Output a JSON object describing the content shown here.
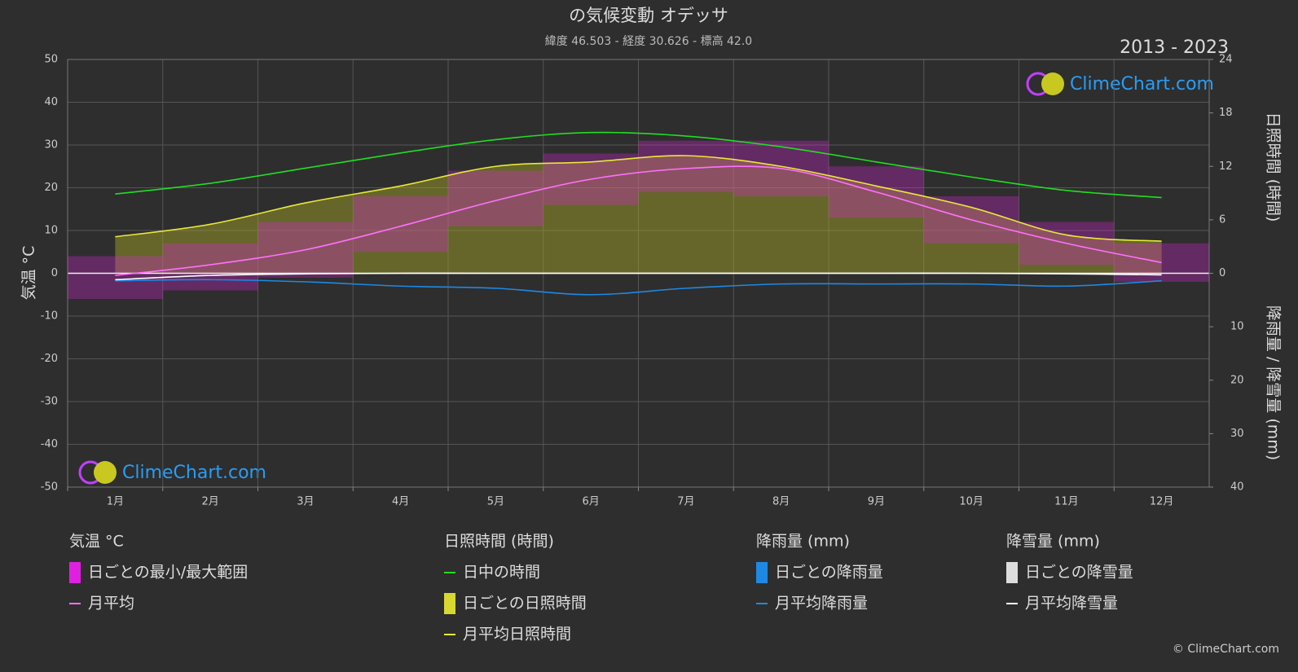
{
  "chart_data": {
    "type": "line",
    "title": "の気候変動 オデッサ",
    "subtitle": "緯度 46.503 - 経度 30.626 - 標高 42.0",
    "period": "2013 - 2023",
    "categories": [
      "1月",
      "2月",
      "3月",
      "4月",
      "5月",
      "6月",
      "7月",
      "8月",
      "9月",
      "10月",
      "11月",
      "12月"
    ],
    "ylabel": "気温 °C",
    "y2label": "日照時間 (時間)",
    "y3label": "降雨量 / 降雪量 (mm)",
    "ylim": [
      -50,
      50
    ],
    "yticks": [
      -50,
      -40,
      -30,
      -20,
      -10,
      0,
      10,
      20,
      30,
      40,
      50
    ],
    "y2lim": [
      0,
      24
    ],
    "y2ticks": [
      0,
      6,
      12,
      18,
      24
    ],
    "y3lim": [
      0,
      40
    ],
    "y3ticks": [
      0,
      10,
      20,
      30,
      40
    ],
    "grid": true,
    "range": {
      "color": "#e020e0",
      "min": [
        -6,
        -4,
        -1,
        5,
        11,
        16,
        19,
        18,
        13,
        7,
        2,
        -2
      ],
      "max": [
        4,
        7,
        12,
        18,
        24,
        28,
        31,
        31,
        25,
        18,
        12,
        7
      ]
    },
    "series": [
      {
        "name": "月平均",
        "color": "#ff70ff",
        "axis": "y",
        "values": [
          -0.5,
          2,
          5.5,
          11,
          17,
          22,
          24.5,
          24.5,
          19,
          12.5,
          7,
          2.5
        ]
      },
      {
        "name": "日中の時間",
        "color": "#22dd22",
        "axis": "y2",
        "values": [
          8.9,
          10.1,
          11.8,
          13.5,
          15.0,
          15.8,
          15.4,
          14.2,
          12.5,
          10.8,
          9.3,
          8.5
        ]
      },
      {
        "name": "月平均日照時間",
        "color": "#e8e83a",
        "axis": "y2",
        "values": [
          4.1,
          5.5,
          7.9,
          9.8,
          12.0,
          12.5,
          13.2,
          12.0,
          9.8,
          7.4,
          4.3,
          3.6
        ]
      },
      {
        "name": "月平均降雨量",
        "color": "#1e88e5",
        "axis": "y3",
        "values": [
          1.4,
          1.2,
          1.6,
          2.4,
          2.8,
          4.0,
          2.8,
          2.0,
          2.0,
          2.0,
          2.4,
          1.4
        ]
      },
      {
        "name": "月平均降雪量",
        "color": "#ffffff",
        "axis": "y3",
        "values": [
          1.2,
          0.4,
          0.1,
          0,
          0,
          0,
          0,
          0,
          0,
          0,
          0.1,
          0.3
        ]
      }
    ],
    "legend": [
      {
        "title": "気温 °C",
        "items": [
          {
            "name": "日ごとの最小/最大範囲",
            "color": "#e020e0",
            "swatch": "box"
          },
          {
            "name": "月平均",
            "color": "#ff70ff",
            "swatch": "line"
          }
        ]
      },
      {
        "title": "日照時間 (時間)",
        "items": [
          {
            "name": "日中の時間",
            "color": "#22dd22",
            "swatch": "line"
          },
          {
            "name": "日ごとの日照時間",
            "color": "#d8d830",
            "swatch": "box"
          },
          {
            "name": "月平均日照時間",
            "color": "#e8e83a",
            "swatch": "line"
          }
        ]
      },
      {
        "title": "降雨量 (mm)",
        "items": [
          {
            "name": "日ごとの降雨量",
            "color": "#1e88e5",
            "swatch": "box"
          },
          {
            "name": "月平均降雨量",
            "color": "#1e88e5",
            "swatch": "line"
          }
        ]
      },
      {
        "title": "降雪量 (mm)",
        "items": [
          {
            "name": "日ごとの降雪量",
            "color": "#dddddd",
            "swatch": "box"
          },
          {
            "name": "月平均降雪量",
            "color": "#ffffff",
            "swatch": "line"
          }
        ]
      }
    ],
    "watermark": "ClimeChart.com",
    "copyright": "© ClimeChart.com"
  }
}
